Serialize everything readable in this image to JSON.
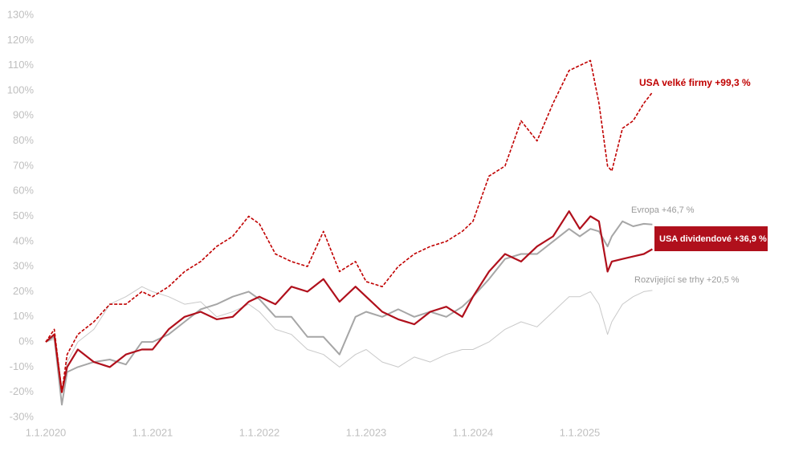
{
  "chart_data": {
    "type": "line",
    "x": [
      2020.0,
      2020.08,
      2020.15,
      2020.2,
      2020.3,
      2020.45,
      2020.6,
      2020.75,
      2020.9,
      2021.0,
      2021.15,
      2021.3,
      2021.45,
      2021.6,
      2021.75,
      2021.9,
      2022.0,
      2022.15,
      2022.3,
      2022.45,
      2022.6,
      2022.75,
      2022.9,
      2023.0,
      2023.15,
      2023.3,
      2023.45,
      2023.6,
      2023.75,
      2023.9,
      2024.0,
      2024.15,
      2024.3,
      2024.45,
      2024.6,
      2024.75,
      2024.9,
      2025.0,
      2025.1,
      2025.18,
      2025.26,
      2025.3,
      2025.4,
      2025.5,
      2025.6,
      2025.68
    ],
    "series": [
      {
        "name": "USA velké firmy",
        "end_label": "USA velké firmy +99,3 %",
        "color": "#c00000",
        "dashed": true,
        "values": [
          0,
          5,
          -20,
          -5,
          3,
          8,
          15,
          15,
          20,
          18,
          22,
          28,
          32,
          38,
          42,
          50,
          47,
          35,
          32,
          30,
          44,
          28,
          32,
          24,
          22,
          30,
          35,
          38,
          40,
          44,
          48,
          66,
          70,
          88,
          80,
          95,
          108,
          110,
          112,
          95,
          70,
          68,
          85,
          88,
          95,
          99.3
        ]
      },
      {
        "name": "USA dividendové",
        "end_label": "USA dividendové +36,9 %",
        "color": "#b0101c",
        "dashed": false,
        "values": [
          0,
          3,
          -20,
          -10,
          -3,
          -8,
          -10,
          -5,
          -3,
          -3,
          5,
          10,
          12,
          9,
          10,
          16,
          18,
          15,
          22,
          20,
          25,
          16,
          22,
          18,
          12,
          9,
          7,
          12,
          14,
          10,
          18,
          28,
          35,
          32,
          38,
          42,
          52,
          45,
          50,
          48,
          28,
          32,
          33,
          34,
          35,
          36.9
        ]
      },
      {
        "name": "Evropa",
        "end_label": "Evropa +46,7 %",
        "color": "#a6a6a6",
        "dashed": false,
        "values": [
          0,
          2,
          -25,
          -12,
          -10,
          -8,
          -7,
          -9,
          0,
          0,
          3,
          8,
          13,
          15,
          18,
          20,
          17,
          10,
          10,
          2,
          2,
          -5,
          10,
          12,
          10,
          13,
          10,
          12,
          10,
          14,
          18,
          25,
          33,
          35,
          35,
          40,
          45,
          42,
          45,
          44,
          38,
          42,
          48,
          46,
          47,
          46.7
        ]
      },
      {
        "name": "Rozvíjející se trhy",
        "end_label": "Rozvíjející se trhy +20,5 %",
        "color": "#c9c9c9",
        "dashed": false,
        "values": [
          0,
          1,
          -20,
          -8,
          0,
          5,
          15,
          18,
          22,
          20,
          18,
          15,
          16,
          10,
          12,
          15,
          12,
          5,
          3,
          -3,
          -5,
          -10,
          -5,
          -3,
          -8,
          -10,
          -6,
          -8,
          -5,
          -3,
          -3,
          0,
          5,
          8,
          6,
          12,
          18,
          18,
          20,
          15,
          3,
          8,
          15,
          18,
          20,
          20.5
        ]
      }
    ],
    "xlim": [
      2020,
      2026.5
    ],
    "xticks": [
      {
        "value": 2020,
        "label": "1.1.2020"
      },
      {
        "value": 2021,
        "label": "1.1.2021"
      },
      {
        "value": 2022,
        "label": "1.1.2022"
      },
      {
        "value": 2023,
        "label": "1.1.2023"
      },
      {
        "value": 2024,
        "label": "1.1.2024"
      },
      {
        "value": 2025,
        "label": "1.1.2025"
      }
    ],
    "ylim": [
      -30,
      130
    ],
    "yticks": [
      {
        "value": -30,
        "label": "-30%"
      },
      {
        "value": -20,
        "label": "-20%"
      },
      {
        "value": -10,
        "label": "-10%"
      },
      {
        "value": 0,
        "label": "0%"
      },
      {
        "value": 10,
        "label": "10%"
      },
      {
        "value": 20,
        "label": "20%"
      },
      {
        "value": 30,
        "label": "30%"
      },
      {
        "value": 40,
        "label": "40%"
      },
      {
        "value": 50,
        "label": "50%"
      },
      {
        "value": 60,
        "label": "60%"
      },
      {
        "value": 70,
        "label": "70%"
      },
      {
        "value": 80,
        "label": "80%"
      },
      {
        "value": 90,
        "label": "90%"
      },
      {
        "value": 100,
        "label": "100%"
      },
      {
        "value": 110,
        "label": "110%"
      },
      {
        "value": 120,
        "label": "120%"
      },
      {
        "value": 130,
        "label": "130%"
      }
    ],
    "grid": false
  }
}
